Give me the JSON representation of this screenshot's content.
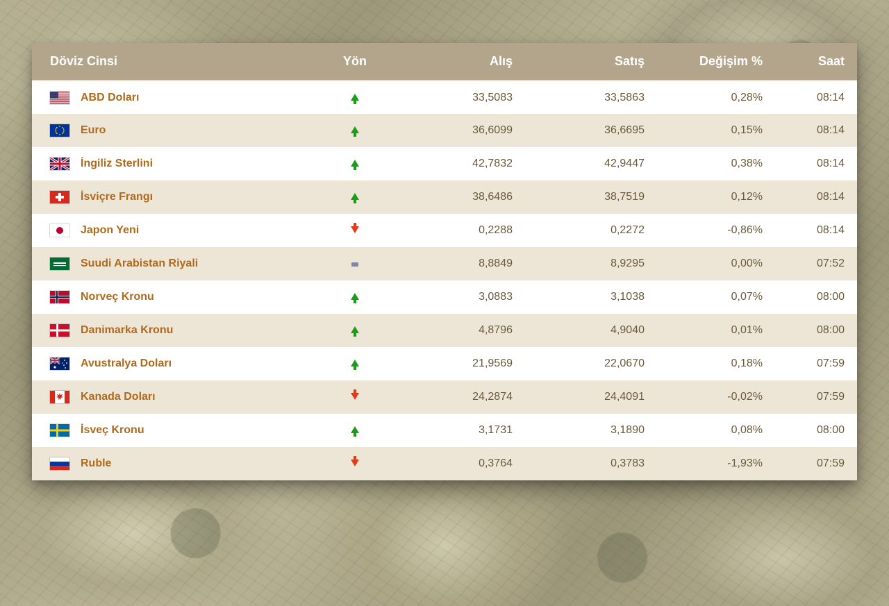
{
  "colors": {
    "header_bg": "#b2a58b",
    "header_text": "#ffffff",
    "row_odd_bg": "#ffffff",
    "row_even_bg": "#ede6d7",
    "value_text": "#6b5a3a",
    "currency_name_text": "#b06a1a",
    "arrow_up": "#1a9e1a",
    "arrow_down": "#e23b1a",
    "arrow_flat": "#7a8aa8",
    "card_bg": "#ffffff"
  },
  "table": {
    "columns": [
      {
        "key": "name",
        "label": "Döviz Cinsi",
        "align": "left"
      },
      {
        "key": "dir",
        "label": "Yön",
        "align": "center"
      },
      {
        "key": "buy",
        "label": "Alış",
        "align": "right"
      },
      {
        "key": "sell",
        "label": "Satış",
        "align": "right"
      },
      {
        "key": "change",
        "label": "Değişim %",
        "align": "right"
      },
      {
        "key": "time",
        "label": "Saat",
        "align": "right"
      }
    ],
    "rows": [
      {
        "flag": "us",
        "name": "ABD Doları",
        "dir": "up",
        "buy": "33,5083",
        "sell": "33,5863",
        "change": "0,28%",
        "time": "08:14"
      },
      {
        "flag": "eu",
        "name": "Euro",
        "dir": "up",
        "buy": "36,6099",
        "sell": "36,6695",
        "change": "0,15%",
        "time": "08:14"
      },
      {
        "flag": "gb",
        "name": "İngiliz Sterlini",
        "dir": "up",
        "buy": "42,7832",
        "sell": "42,9447",
        "change": "0,38%",
        "time": "08:14"
      },
      {
        "flag": "ch",
        "name": "İsviçre Frangı",
        "dir": "up",
        "buy": "38,6486",
        "sell": "38,7519",
        "change": "0,12%",
        "time": "08:14"
      },
      {
        "flag": "jp",
        "name": "Japon Yeni",
        "dir": "down",
        "buy": "0,2288",
        "sell": "0,2272",
        "change": "-0,86%",
        "time": "08:14"
      },
      {
        "flag": "sa",
        "name": "Suudi Arabistan Riyali",
        "dir": "flat",
        "buy": "8,8849",
        "sell": "8,9295",
        "change": "0,00%",
        "time": "07:52"
      },
      {
        "flag": "no",
        "name": "Norveç Kronu",
        "dir": "up",
        "buy": "3,0883",
        "sell": "3,1038",
        "change": "0,07%",
        "time": "08:00"
      },
      {
        "flag": "dk",
        "name": "Danimarka Kronu",
        "dir": "up",
        "buy": "4,8796",
        "sell": "4,9040",
        "change": "0,01%",
        "time": "08:00"
      },
      {
        "flag": "au",
        "name": "Avustralya Doları",
        "dir": "up",
        "buy": "21,9569",
        "sell": "22,0670",
        "change": "0,18%",
        "time": "07:59"
      },
      {
        "flag": "ca",
        "name": "Kanada Doları",
        "dir": "down",
        "buy": "24,2874",
        "sell": "24,4091",
        "change": "-0,02%",
        "time": "07:59"
      },
      {
        "flag": "se",
        "name": "İsveç Kronu",
        "dir": "up",
        "buy": "3,1731",
        "sell": "3,1890",
        "change": "0,08%",
        "time": "08:00"
      },
      {
        "flag": "ru",
        "name": "Ruble",
        "dir": "down",
        "buy": "0,3764",
        "sell": "0,3783",
        "change": "-1,93%",
        "time": "07:59"
      }
    ]
  }
}
